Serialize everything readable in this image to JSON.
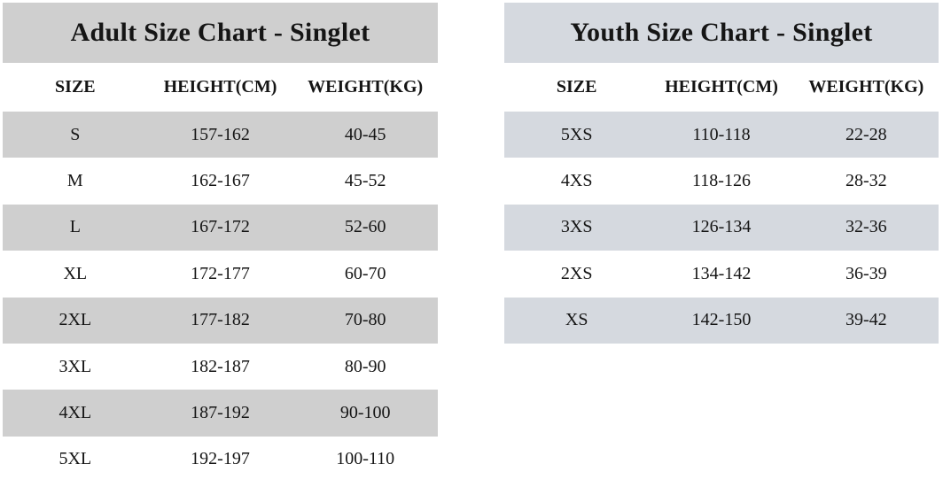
{
  "chart_data": [
    {
      "type": "table",
      "title": "Adult Size Chart - Singlet",
      "columns": [
        "SIZE",
        "HEIGHT(CM)",
        "WEIGHT(KG)"
      ],
      "rows": [
        [
          "S",
          "157-162",
          "40-45"
        ],
        [
          "M",
          "162-167",
          "45-52"
        ],
        [
          "L",
          "167-172",
          "52-60"
        ],
        [
          "XL",
          "172-177",
          "60-70"
        ],
        [
          "2XL",
          "177-182",
          "70-80"
        ],
        [
          "3XL",
          "182-187",
          "80-90"
        ],
        [
          "4XL",
          "187-192",
          "90-100"
        ],
        [
          "5XL",
          "192-197",
          "100-110"
        ]
      ],
      "stripe_color": "#cfcfcf",
      "alt_row_color": "#ffffff",
      "text_color": "#151515",
      "layout_hint": "title band and odd data rows shaded; striping starts on first data row"
    },
    {
      "type": "table",
      "title": "Youth Size Chart - Singlet",
      "columns": [
        "SIZE",
        "HEIGHT(CM)",
        "WEIGHT(KG)"
      ],
      "rows": [
        [
          "5XS",
          "110-118",
          "22-28"
        ],
        [
          "4XS",
          "118-126",
          "28-32"
        ],
        [
          "3XS",
          "126-134",
          "32-36"
        ],
        [
          "2XS",
          "134-142",
          "36-39"
        ],
        [
          "XS",
          "142-150",
          "39-42"
        ]
      ],
      "stripe_color": "#d5d9df",
      "alt_row_color": "#ffffff",
      "text_color": "#151515",
      "layout_hint": "title band and odd data rows shaded; striping starts on first data row"
    }
  ]
}
